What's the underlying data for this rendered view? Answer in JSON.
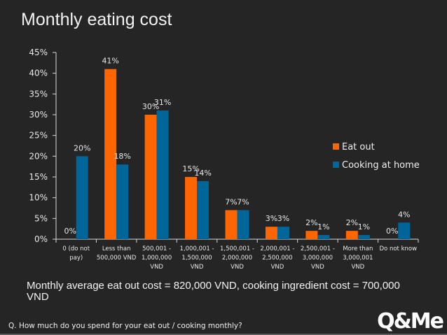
{
  "chart_data": {
    "type": "bar",
    "title": "Monthly eating cost",
    "xlabel": "",
    "ylabel": "",
    "ylim": [
      0,
      45
    ],
    "yticks": [
      "0%",
      "5%",
      "10%",
      "15%",
      "20%",
      "25%",
      "30%",
      "35%",
      "40%",
      "45%"
    ],
    "ytick_values": [
      0,
      5,
      10,
      15,
      20,
      25,
      30,
      35,
      40,
      45
    ],
    "categories": [
      [
        "0 (do not",
        "pay)"
      ],
      [
        "Less than",
        "500,000 VND"
      ],
      [
        "500,001 -",
        "1,000,000",
        "VND"
      ],
      [
        "1,000,001 -",
        "1,500,000",
        "VND"
      ],
      [
        "1,500,001 -",
        "2,000,000",
        "VND"
      ],
      [
        "2,000,001 -",
        "2,500,000",
        "VND"
      ],
      [
        "2,500,001 -",
        "3,000,000",
        "VND"
      ],
      [
        "More than",
        "3,000,001",
        "VND"
      ],
      [
        "Do not know"
      ]
    ],
    "series": [
      {
        "name": "Eat out",
        "color": "#FF6600",
        "values": [
          0,
          41,
          30,
          15,
          7,
          3,
          2,
          2,
          0
        ],
        "labels": [
          "0%",
          "41%",
          "30%",
          "15%",
          "7%",
          "3%",
          "2%",
          "2%",
          "0%"
        ]
      },
      {
        "name": "Cooking at home",
        "color": "#006699",
        "values": [
          20,
          18,
          31,
          14,
          7,
          3,
          1,
          1,
          4
        ],
        "labels": [
          "20%",
          "18%",
          "31%",
          "14%",
          "7%",
          "3%",
          "1%",
          "1%",
          "4%"
        ]
      }
    ],
    "legend": "right",
    "grid": false
  },
  "summary": "Monthly average eat out cost = 820,000 VND, cooking ingredient cost = 700,000 VND",
  "question": "Q. How much do you spend for your eat out / cooking monthly?",
  "logo": "Q&Me"
}
